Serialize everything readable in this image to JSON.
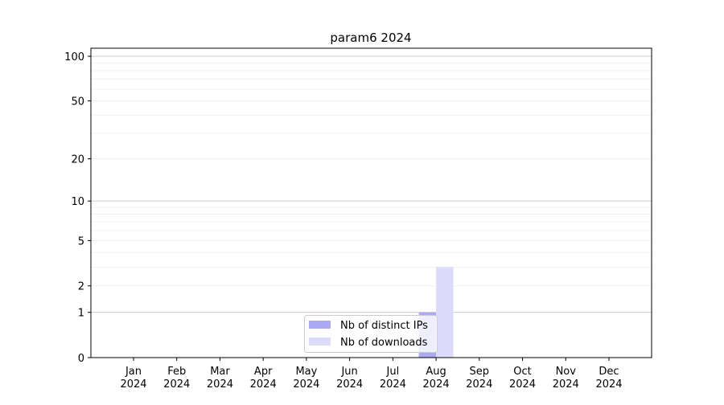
{
  "chart_data": {
    "type": "bar",
    "title": "param6 2024",
    "xlabel": "",
    "ylabel": "",
    "yscale": "log(1+y)",
    "ylim": [
      0,
      116
    ],
    "yticks": [
      0,
      1,
      2,
      5,
      10,
      20,
      50,
      100
    ],
    "ytick_labels": [
      "0",
      "1",
      "2",
      "5",
      "10",
      "20",
      "50",
      "100"
    ],
    "grid": true,
    "legend_position": "lower-center",
    "categories": [
      "Jan\n2024",
      "Feb\n2024",
      "Mar\n2024",
      "Apr\n2024",
      "May\n2024",
      "Jun\n2024",
      "Jul\n2024",
      "Aug\n2024",
      "Sep\n2024",
      "Oct\n2024",
      "Nov\n2024",
      "Dec\n2024"
    ],
    "series": [
      {
        "name": "Nb of distinct IPs",
        "color": "#aaaaf5",
        "values": [
          0,
          0,
          0,
          0,
          0,
          0,
          0,
          1,
          0,
          0,
          0,
          0
        ]
      },
      {
        "name": "Nb of downloads",
        "color": "#dcdcfa",
        "values": [
          0,
          0,
          0,
          0,
          0,
          0,
          0,
          3,
          0,
          0,
          0,
          0
        ]
      }
    ]
  }
}
